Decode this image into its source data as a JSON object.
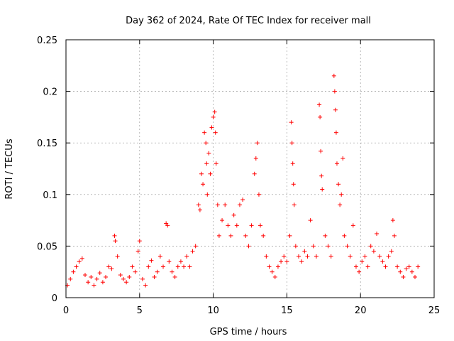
{
  "chart_data": {
    "type": "scatter",
    "title": "Day 362 of 2024, Rate Of TEC Index for receiver mall",
    "xlabel": "GPS time / hours",
    "ylabel": "ROTI / TECUs",
    "xlim": [
      0,
      25
    ],
    "ylim": [
      0,
      0.25
    ],
    "xticks": [
      0,
      5,
      10,
      15,
      20,
      25
    ],
    "xtick_labels": [
      "0",
      "5",
      "10",
      "15",
      "20",
      "25"
    ],
    "yticks": [
      0,
      0.05,
      0.1,
      0.15,
      0.2,
      0.25
    ],
    "ytick_labels": [
      "0",
      "0.05",
      "0.1",
      "0.15",
      "0.2",
      "0.25"
    ],
    "grid": true,
    "marker": "+",
    "color": "#ff0000",
    "series": [
      {
        "name": "ROTI",
        "points": [
          [
            0.1,
            0.012
          ],
          [
            0.3,
            0.018
          ],
          [
            0.5,
            0.025
          ],
          [
            0.7,
            0.03
          ],
          [
            0.9,
            0.035
          ],
          [
            1.1,
            0.038
          ],
          [
            1.3,
            0.022
          ],
          [
            1.5,
            0.015
          ],
          [
            1.7,
            0.02
          ],
          [
            1.9,
            0.012
          ],
          [
            2.1,
            0.018
          ],
          [
            2.3,
            0.024
          ],
          [
            2.5,
            0.015
          ],
          [
            2.7,
            0.02
          ],
          [
            2.9,
            0.03
          ],
          [
            3.1,
            0.028
          ],
          [
            3.3,
            0.06
          ],
          [
            3.35,
            0.055
          ],
          [
            3.5,
            0.04
          ],
          [
            3.7,
            0.022
          ],
          [
            3.9,
            0.018
          ],
          [
            4.1,
            0.015
          ],
          [
            4.3,
            0.02
          ],
          [
            4.5,
            0.03
          ],
          [
            4.7,
            0.025
          ],
          [
            4.9,
            0.045
          ],
          [
            5.0,
            0.055
          ],
          [
            5.2,
            0.018
          ],
          [
            5.4,
            0.012
          ],
          [
            5.6,
            0.03
          ],
          [
            5.8,
            0.036
          ],
          [
            6.0,
            0.02
          ],
          [
            6.2,
            0.025
          ],
          [
            6.4,
            0.04
          ],
          [
            6.6,
            0.03
          ],
          [
            6.8,
            0.072
          ],
          [
            6.9,
            0.07
          ],
          [
            7.0,
            0.035
          ],
          [
            7.2,
            0.025
          ],
          [
            7.4,
            0.02
          ],
          [
            7.6,
            0.03
          ],
          [
            7.8,
            0.035
          ],
          [
            8.0,
            0.03
          ],
          [
            8.2,
            0.04
          ],
          [
            8.4,
            0.03
          ],
          [
            8.6,
            0.045
          ],
          [
            8.8,
            0.05
          ],
          [
            9.0,
            0.09
          ],
          [
            9.1,
            0.085
          ],
          [
            9.2,
            0.12
          ],
          [
            9.3,
            0.11
          ],
          [
            9.4,
            0.16
          ],
          [
            9.5,
            0.15
          ],
          [
            9.55,
            0.13
          ],
          [
            9.6,
            0.1
          ],
          [
            9.7,
            0.14
          ],
          [
            9.8,
            0.12
          ],
          [
            9.9,
            0.165
          ],
          [
            10.0,
            0.175
          ],
          [
            10.1,
            0.18
          ],
          [
            10.15,
            0.16
          ],
          [
            10.2,
            0.13
          ],
          [
            10.3,
            0.09
          ],
          [
            10.4,
            0.06
          ],
          [
            10.6,
            0.075
          ],
          [
            10.8,
            0.09
          ],
          [
            11.0,
            0.07
          ],
          [
            11.2,
            0.06
          ],
          [
            11.4,
            0.08
          ],
          [
            11.6,
            0.07
          ],
          [
            11.8,
            0.09
          ],
          [
            12.0,
            0.095
          ],
          [
            12.2,
            0.06
          ],
          [
            12.4,
            0.05
          ],
          [
            12.6,
            0.07
          ],
          [
            12.8,
            0.12
          ],
          [
            12.9,
            0.135
          ],
          [
            13.0,
            0.15
          ],
          [
            13.1,
            0.1
          ],
          [
            13.2,
            0.07
          ],
          [
            13.4,
            0.06
          ],
          [
            13.6,
            0.04
          ],
          [
            13.8,
            0.03
          ],
          [
            14.0,
            0.025
          ],
          [
            14.2,
            0.02
          ],
          [
            14.4,
            0.03
          ],
          [
            14.6,
            0.035
          ],
          [
            14.8,
            0.04
          ],
          [
            15.0,
            0.035
          ],
          [
            15.2,
            0.06
          ],
          [
            15.3,
            0.17
          ],
          [
            15.35,
            0.15
          ],
          [
            15.4,
            0.13
          ],
          [
            15.45,
            0.11
          ],
          [
            15.5,
            0.09
          ],
          [
            15.6,
            0.05
          ],
          [
            15.8,
            0.04
          ],
          [
            16.0,
            0.035
          ],
          [
            16.2,
            0.045
          ],
          [
            16.4,
            0.04
          ],
          [
            16.6,
            0.075
          ],
          [
            16.8,
            0.05
          ],
          [
            17.0,
            0.04
          ],
          [
            17.2,
            0.187
          ],
          [
            17.25,
            0.175
          ],
          [
            17.3,
            0.142
          ],
          [
            17.35,
            0.118
          ],
          [
            17.4,
            0.105
          ],
          [
            17.6,
            0.06
          ],
          [
            17.8,
            0.05
          ],
          [
            18.0,
            0.04
          ],
          [
            18.2,
            0.215
          ],
          [
            18.25,
            0.2
          ],
          [
            18.3,
            0.182
          ],
          [
            18.35,
            0.16
          ],
          [
            18.4,
            0.13
          ],
          [
            18.5,
            0.11
          ],
          [
            18.6,
            0.09
          ],
          [
            18.7,
            0.1
          ],
          [
            18.8,
            0.135
          ],
          [
            18.9,
            0.06
          ],
          [
            19.1,
            0.05
          ],
          [
            19.3,
            0.04
          ],
          [
            19.5,
            0.07
          ],
          [
            19.7,
            0.03
          ],
          [
            19.9,
            0.025
          ],
          [
            20.1,
            0.035
          ],
          [
            20.3,
            0.04
          ],
          [
            20.5,
            0.03
          ],
          [
            20.7,
            0.05
          ],
          [
            20.9,
            0.045
          ],
          [
            21.1,
            0.062
          ],
          [
            21.3,
            0.04
          ],
          [
            21.5,
            0.035
          ],
          [
            21.7,
            0.03
          ],
          [
            21.9,
            0.04
          ],
          [
            22.1,
            0.045
          ],
          [
            22.2,
            0.075
          ],
          [
            22.3,
            0.06
          ],
          [
            22.5,
            0.03
          ],
          [
            22.7,
            0.025
          ],
          [
            22.9,
            0.02
          ],
          [
            23.1,
            0.028
          ],
          [
            23.3,
            0.03
          ],
          [
            23.5,
            0.025
          ],
          [
            23.7,
            0.02
          ],
          [
            23.9,
            0.03
          ]
        ]
      }
    ]
  }
}
